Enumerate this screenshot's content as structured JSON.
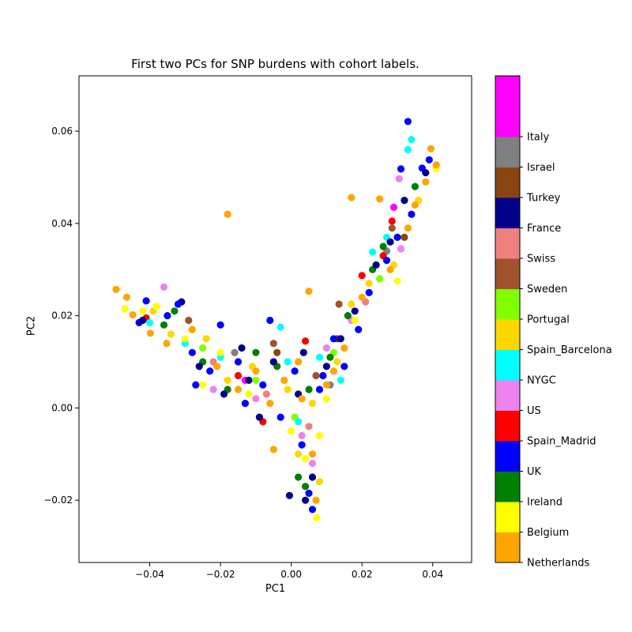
{
  "chart_data": {
    "type": "scatter",
    "title": "First two PCs for SNP burdens with cohort labels.",
    "xlabel": "PC1",
    "ylabel": "PC2",
    "xlim": [
      -0.06,
      0.051
    ],
    "ylim": [
      -0.0335,
      0.072
    ],
    "xticks": [
      -0.04,
      -0.02,
      0.0,
      0.02,
      0.04
    ],
    "xtick_labels": [
      "−0.04",
      "−0.02",
      "0.00",
      "0.02",
      "0.04"
    ],
    "yticks": [
      -0.02,
      0.0,
      0.02,
      0.04,
      0.06
    ],
    "ytick_labels": [
      "−0.02",
      "0.00",
      "0.02",
      "0.04",
      "0.06"
    ],
    "grid": false,
    "legend": "colorbar-right",
    "colorbar": {
      "categories": [
        "Netherlands",
        "Belgium",
        "Ireland",
        "UK",
        "Spain_Madrid",
        "US",
        "NYGC",
        "Spain_Barcelona",
        "Portugal",
        "Sweden",
        "Swiss",
        "France",
        "Turkey",
        "Israel",
        "Italy",
        ""
      ],
      "colors": [
        "#ffa500",
        "#ffff00",
        "#008000",
        "#0000ff",
        "#ff0000",
        "#ee82ee",
        "#00ffff",
        "#ffd700",
        "#7fff00",
        "#a0522d",
        "#f08080",
        "#00008b",
        "#8b4513",
        "#808080",
        "#ff00ff",
        "#ff00ff"
      ]
    },
    "series": [
      {
        "name": "Netherlands",
        "color": "#ffa500",
        "points": [
          [
            -0.0495,
            0.0257
          ],
          [
            -0.0465,
            0.024
          ],
          [
            -0.0448,
            0.0202
          ],
          [
            -0.0398,
            0.0162
          ],
          [
            -0.0352,
            0.014
          ],
          [
            -0.028,
            0.017
          ],
          [
            -0.018,
            0.042
          ],
          [
            -0.021,
            0.009
          ],
          [
            -0.015,
            0.004
          ],
          [
            -0.01,
            0.008
          ],
          [
            -0.006,
            0.001
          ],
          [
            -0.002,
            0.006
          ],
          [
            0.005,
            0.0253
          ],
          [
            0.002,
            0.01
          ],
          [
            0.006,
            -0.01
          ],
          [
            0.007,
            -0.02
          ],
          [
            0.01,
            0.005
          ],
          [
            0.015,
            0.013
          ],
          [
            0.017,
            0.0456
          ],
          [
            0.02,
            0.024
          ],
          [
            0.025,
            0.0453
          ],
          [
            0.028,
            0.03
          ],
          [
            0.033,
            0.039
          ],
          [
            0.035,
            0.044
          ],
          [
            0.038,
            0.049
          ],
          [
            0.0395,
            0.0562
          ],
          [
            0.041,
            0.0527
          ],
          [
            0.012,
            0.008
          ],
          [
            -0.005,
            -0.009
          ],
          [
            0.003,
            0.002
          ]
        ]
      },
      {
        "name": "Belgium",
        "color": "#ffff00",
        "points": [
          [
            -0.047,
            0.0215
          ],
          [
            -0.042,
            0.021
          ],
          [
            -0.038,
            0.022
          ],
          [
            -0.03,
            0.015
          ],
          [
            -0.025,
            0.005
          ],
          [
            -0.02,
            0.012
          ],
          [
            -0.012,
            0.003
          ],
          [
            0.0,
            -0.005
          ],
          [
            0.004,
            -0.011
          ],
          [
            0.0072,
            -0.0238
          ],
          [
            0.01,
            0.002
          ],
          [
            0.018,
            0.019
          ],
          [
            0.03,
            0.0275
          ],
          [
            0.041,
            0.0518
          ],
          [
            0.008,
            -0.006
          ]
        ]
      },
      {
        "name": "Ireland",
        "color": "#008000",
        "points": [
          [
            -0.036,
            0.018
          ],
          [
            -0.033,
            0.021
          ],
          [
            -0.025,
            0.01
          ],
          [
            -0.018,
            0.004
          ],
          [
            -0.01,
            0.012
          ],
          [
            -0.004,
            0.009
          ],
          [
            0.002,
            -0.015
          ],
          [
            0.005,
            0.004
          ],
          [
            0.011,
            0.011
          ],
          [
            0.016,
            0.02
          ],
          [
            0.023,
            0.03
          ],
          [
            0.026,
            0.035
          ],
          [
            0.035,
            0.048
          ],
          [
            0.004,
            -0.017
          ]
        ]
      },
      {
        "name": "UK",
        "color": "#0000ff",
        "points": [
          [
            -0.043,
            0.0185
          ],
          [
            -0.041,
            0.0232
          ],
          [
            -0.035,
            0.02
          ],
          [
            -0.032,
            0.0225
          ],
          [
            -0.028,
            0.012
          ],
          [
            -0.023,
            0.008
          ],
          [
            -0.02,
            0.018
          ],
          [
            -0.015,
            0.01
          ],
          [
            -0.013,
            0.001
          ],
          [
            -0.008,
            0.005
          ],
          [
            -0.006,
            0.019
          ],
          [
            -0.003,
            -0.002
          ],
          [
            0.001,
            0.008
          ],
          [
            0.003,
            -0.008
          ],
          [
            0.005,
            -0.0185
          ],
          [
            0.006,
            -0.022
          ],
          [
            0.008,
            0.004
          ],
          [
            0.012,
            0.015
          ],
          [
            0.015,
            0.009
          ],
          [
            0.019,
            0.017
          ],
          [
            0.022,
            0.025
          ],
          [
            0.027,
            0.032
          ],
          [
            0.03,
            0.037
          ],
          [
            0.031,
            0.0518
          ],
          [
            0.033,
            0.0621
          ],
          [
            0.037,
            0.052
          ],
          [
            0.039,
            0.0538
          ],
          [
            0.034,
            0.042
          ],
          [
            -0.027,
            0.005
          ],
          [
            0.009,
            0.007
          ]
        ]
      },
      {
        "name": "Spain_Madrid",
        "color": "#ff0000",
        "points": [
          [
            -0.041,
            0.0195
          ],
          [
            -0.015,
            0.007
          ],
          [
            -0.008,
            -0.003
          ],
          [
            0.004,
            0.0145
          ],
          [
            0.02,
            0.0287
          ],
          [
            0.0285,
            0.0405
          ],
          [
            0.026,
            0.033
          ]
        ]
      },
      {
        "name": "US",
        "color": "#ee82ee",
        "points": [
          [
            -0.036,
            0.0262
          ],
          [
            -0.022,
            0.004
          ],
          [
            -0.01,
            0.002
          ],
          [
            0.003,
            -0.006
          ],
          [
            0.006,
            -0.012
          ],
          [
            0.017,
            0.019
          ],
          [
            0.031,
            0.0345
          ],
          [
            0.0305,
            0.0497
          ],
          [
            0.01,
            0.013
          ]
        ]
      },
      {
        "name": "NYGC",
        "color": "#00ffff",
        "points": [
          [
            -0.04,
            0.0185
          ],
          [
            -0.03,
            0.014
          ],
          [
            -0.02,
            0.011
          ],
          [
            -0.003,
            0.0175
          ],
          [
            -0.001,
            0.01
          ],
          [
            0.002,
            -0.003
          ],
          [
            0.008,
            0.011
          ],
          [
            0.023,
            0.0338
          ],
          [
            0.027,
            0.037
          ],
          [
            0.033,
            0.056
          ],
          [
            0.034,
            0.0582
          ],
          [
            0.014,
            0.006
          ]
        ]
      },
      {
        "name": "Spain_Barcelona",
        "color": "#ffd700",
        "points": [
          [
            -0.039,
            0.021
          ],
          [
            -0.034,
            0.016
          ],
          [
            -0.024,
            0.015
          ],
          [
            -0.018,
            0.006
          ],
          [
            -0.011,
            0.009
          ],
          [
            -0.001,
            0.004
          ],
          [
            0.002,
            -0.01
          ],
          [
            0.006,
            0.001
          ],
          [
            0.013,
            0.01
          ],
          [
            0.017,
            0.0225
          ],
          [
            0.022,
            0.027
          ],
          [
            0.029,
            0.031
          ],
          [
            0.036,
            0.045
          ],
          [
            0.008,
            -0.016
          ]
        ]
      },
      {
        "name": "Portugal",
        "color": "#7fff00",
        "points": [
          [
            -0.025,
            0.013
          ],
          [
            -0.01,
            0.006
          ],
          [
            0.001,
            -0.002
          ],
          [
            0.012,
            0.012
          ],
          [
            0.025,
            0.028
          ]
        ]
      },
      {
        "name": "Sweden",
        "color": "#a0522d",
        "points": [
          [
            -0.029,
            0.019
          ],
          [
            -0.005,
            0.014
          ],
          [
            0.007,
            0.007
          ],
          [
            0.0135,
            0.0225
          ],
          [
            0.0285,
            0.039
          ]
        ]
      },
      {
        "name": "Swiss",
        "color": "#f08080",
        "points": [
          [
            -0.022,
            0.01
          ],
          [
            -0.007,
            0.003
          ],
          [
            0.005,
            -0.004
          ],
          [
            0.021,
            0.023
          ]
        ]
      },
      {
        "name": "France",
        "color": "#00008b",
        "points": [
          [
            -0.042,
            0.019
          ],
          [
            -0.031,
            0.023
          ],
          [
            -0.026,
            0.009
          ],
          [
            -0.019,
            0.003
          ],
          [
            -0.014,
            0.013
          ],
          [
            -0.009,
            -0.002
          ],
          [
            -0.005,
            0.01
          ],
          [
            -0.0005,
            -0.019
          ],
          [
            0.002,
            0.003
          ],
          [
            0.004,
            -0.02
          ],
          [
            0.006,
            -0.015
          ],
          [
            0.01,
            0.009
          ],
          [
            0.014,
            0.015
          ],
          [
            0.018,
            0.021
          ],
          [
            0.024,
            0.031
          ],
          [
            0.028,
            0.036
          ],
          [
            0.032,
            0.045
          ],
          [
            0.038,
            0.051
          ],
          [
            0.0035,
            0.012
          ],
          [
            -0.012,
            0.006
          ]
        ]
      },
      {
        "name": "Turkey",
        "color": "#8b4513",
        "points": [
          [
            -0.004,
            0.012
          ],
          [
            0.013,
            0.015
          ],
          [
            0.032,
            0.037
          ]
        ]
      },
      {
        "name": "Israel",
        "color": "#808080",
        "points": [
          [
            -0.016,
            0.012
          ],
          [
            0.011,
            0.005
          ],
          [
            0.027,
            0.034
          ]
        ]
      },
      {
        "name": "Italy",
        "color": "#ff00ff",
        "points": [
          [
            -0.013,
            0.006
          ],
          [
            0.029,
            0.0435
          ]
        ]
      }
    ]
  }
}
